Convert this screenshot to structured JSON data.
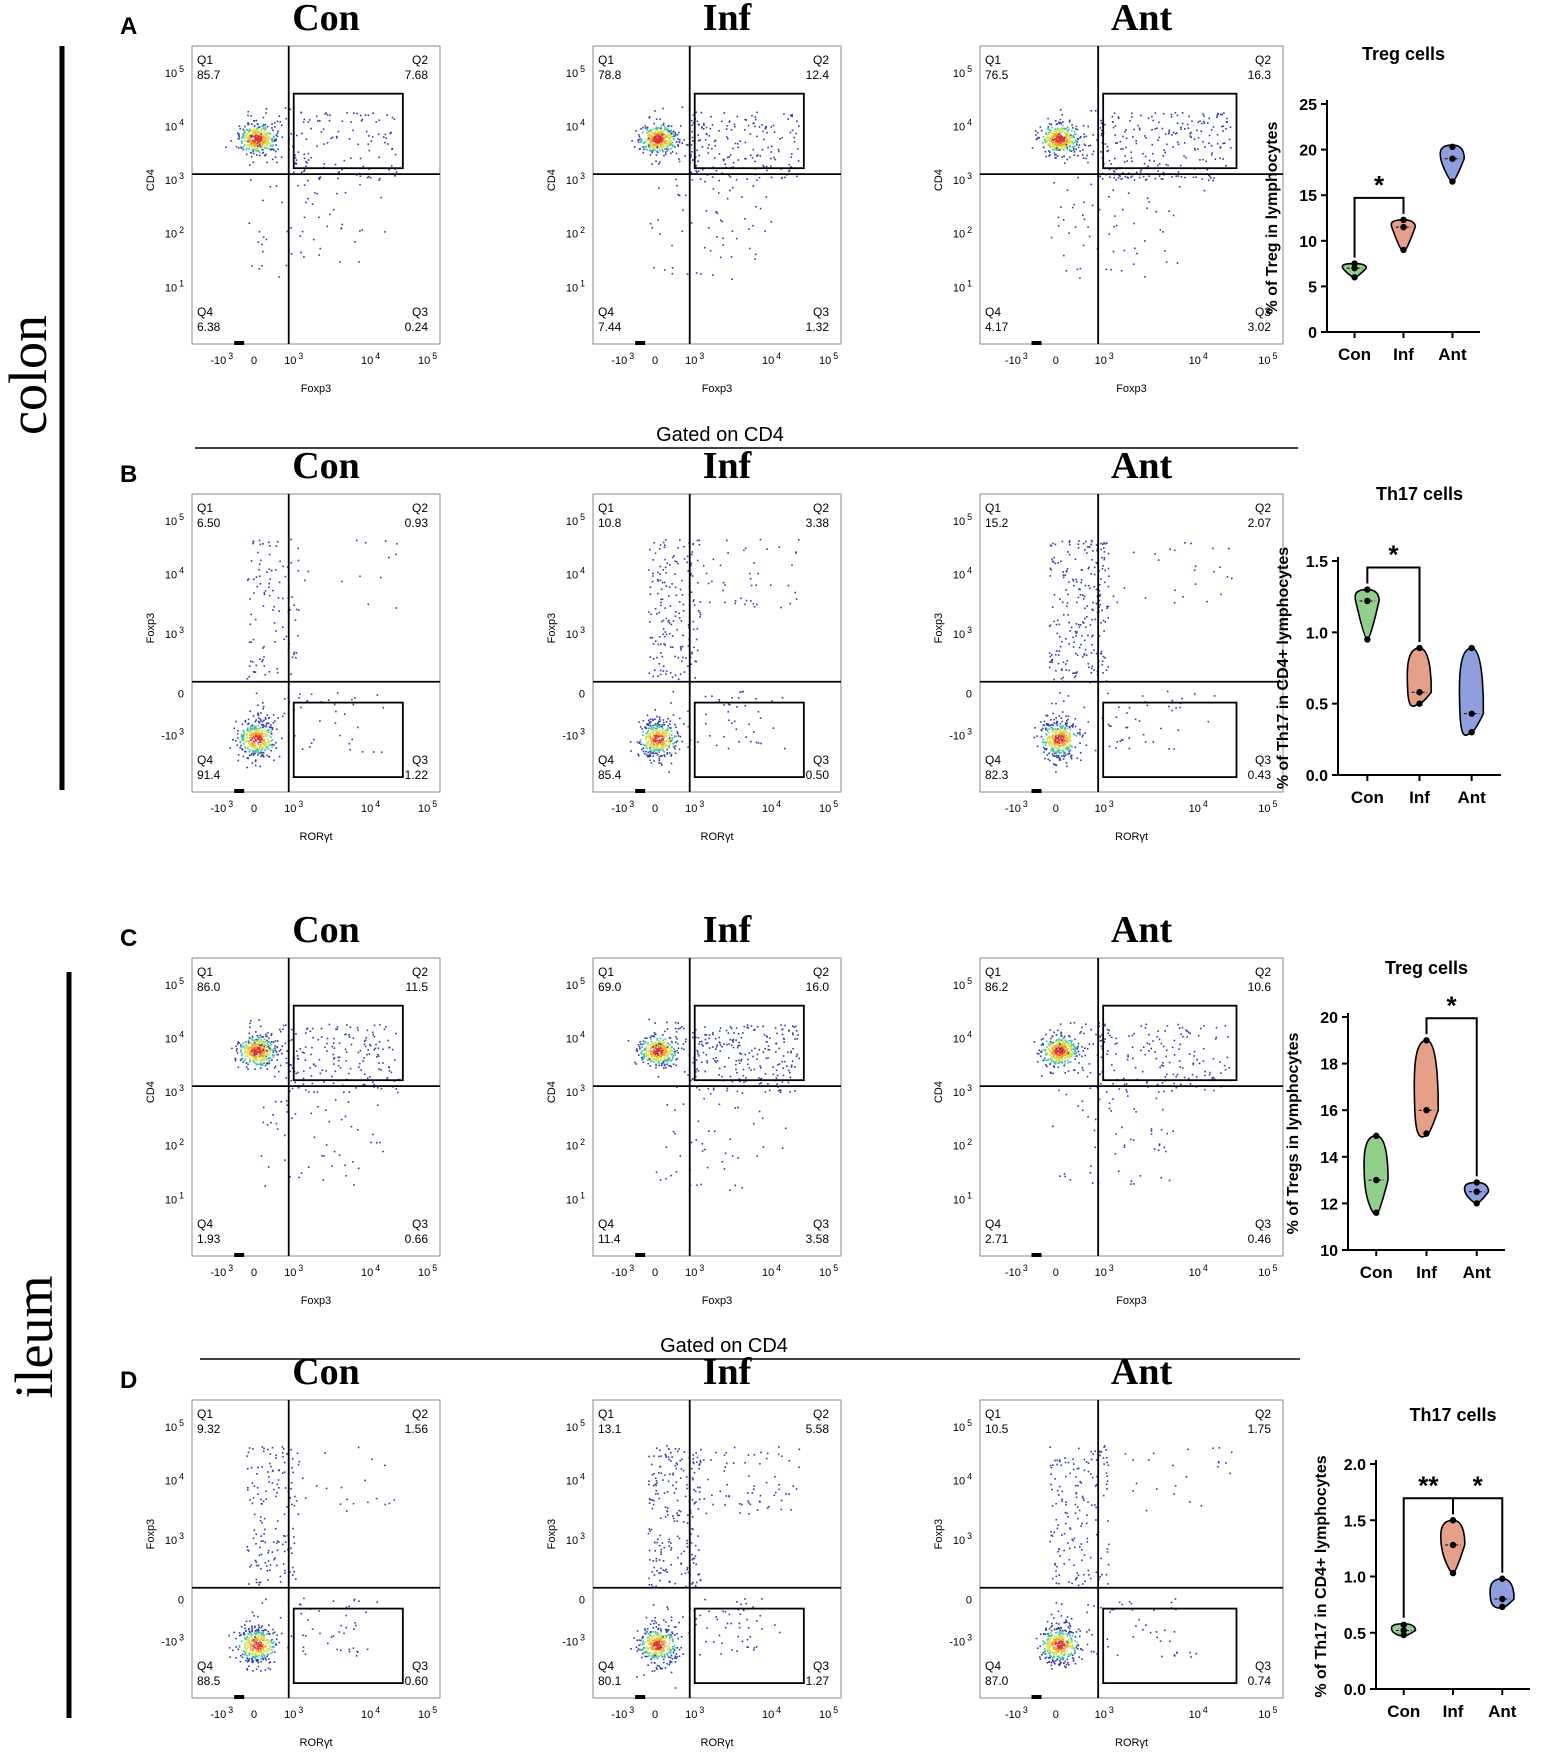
{
  "side_labels": {
    "colon": "colon",
    "ileum": "ileum"
  },
  "gated_label": "Gated on CD4",
  "group_names": [
    "Con",
    "Inf",
    "Ant"
  ],
  "colors": {
    "con": "#92cf8c",
    "inf": "#e6a08a",
    "ant": "#8f9fde",
    "scatter": "#2f3aa8"
  },
  "panels": [
    {
      "letter": "A",
      "xaxis": "Foxp3",
      "yaxis": "CD4",
      "yticks": "high",
      "plots": [
        {
          "title": "Con",
          "q": {
            "Q1": "85.7",
            "Q2": "7.68",
            "Q3": "0.24",
            "Q4": "6.38"
          }
        },
        {
          "title": "Inf",
          "q": {
            "Q1": "78.8",
            "Q2": "12.4",
            "Q3": "1.32",
            "Q4": "7.44"
          }
        },
        {
          "title": "Ant",
          "q": {
            "Q1": "76.5",
            "Q2": "16.3",
            "Q3": "3.02",
            "Q4": "4.17"
          }
        }
      ]
    },
    {
      "letter": "B",
      "xaxis": "RORγt",
      "yaxis": "Foxp3",
      "yticks": "low",
      "plots": [
        {
          "title": "Con",
          "q": {
            "Q1": "6.50",
            "Q2": "0.93",
            "Q3": "1.22",
            "Q4": "91.4"
          }
        },
        {
          "title": "Inf",
          "q": {
            "Q1": "10.8",
            "Q2": "3.38",
            "Q3": "0.50",
            "Q4": "85.4"
          }
        },
        {
          "title": "Ant",
          "q": {
            "Q1": "15.2",
            "Q2": "2.07",
            "Q3": "0.43",
            "Q4": "82.3"
          }
        }
      ]
    },
    {
      "letter": "C",
      "xaxis": "Foxp3",
      "yaxis": "CD4",
      "yticks": "high",
      "plots": [
        {
          "title": "Con",
          "q": {
            "Q1": "86.0",
            "Q2": "11.5",
            "Q3": "0.66",
            "Q4": "1.93"
          }
        },
        {
          "title": "Inf",
          "q": {
            "Q1": "69.0",
            "Q2": "16.0",
            "Q3": "3.58",
            "Q4": "11.4"
          }
        },
        {
          "title": "Ant",
          "q": {
            "Q1": "86.2",
            "Q2": "10.6",
            "Q3": "0.46",
            "Q4": "2.71"
          }
        }
      ]
    },
    {
      "letter": "D",
      "xaxis": "RORγt",
      "yaxis": "Foxp3",
      "yticks": "low",
      "plots": [
        {
          "title": "Con",
          "q": {
            "Q1": "9.32",
            "Q2": "1.56",
            "Q3": "0.60",
            "Q4": "88.5"
          }
        },
        {
          "title": "Inf",
          "q": {
            "Q1": "13.1",
            "Q2": "5.58",
            "Q3": "1.27",
            "Q4": "80.1"
          }
        },
        {
          "title": "Ant",
          "q": {
            "Q1": "10.5",
            "Q2": "1.75",
            "Q3": "0.74",
            "Q4": "87.0"
          }
        }
      ]
    }
  ],
  "ticks_x": {
    "neg": "-10",
    "zero": "0",
    "e3": "10",
    "e4": "10",
    "e5": "10",
    "exp3": "3",
    "exp4": "4",
    "exp5": "5"
  },
  "ticks_y_high": [
    {
      "base": "10",
      "exp": "5"
    },
    {
      "base": "10",
      "exp": "4"
    },
    {
      "base": "10",
      "exp": "3"
    },
    {
      "base": "10",
      "exp": "2"
    },
    {
      "base": "10",
      "exp": "1"
    }
  ],
  "ticks_y_low": [
    {
      "base": "10",
      "exp": "5"
    },
    {
      "base": "10",
      "exp": "4"
    },
    {
      "base": "10",
      "exp": "3"
    },
    {
      "base": "0",
      "exp": ""
    },
    {
      "base": "-10",
      "exp": "3"
    }
  ],
  "chart_data": [
    {
      "type": "violin",
      "title": "Treg cells",
      "ylabel": "% of Treg in lymphocytes",
      "categories": [
        "Con",
        "Inf",
        "Ant"
      ],
      "ylim": [
        0,
        25
      ],
      "yticks": [
        0,
        5,
        10,
        15,
        20,
        25
      ],
      "series": [
        {
          "name": "Con",
          "values": [
            6.0,
            7.0,
            7.5
          ],
          "min": 6.0,
          "max": 7.5,
          "median": 7.0
        },
        {
          "name": "Inf",
          "values": [
            9.0,
            11.5,
            12.3
          ],
          "min": 8.8,
          "max": 12.3,
          "median": 11.5
        },
        {
          "name": "Ant",
          "values": [
            16.5,
            19.0,
            20.3
          ],
          "min": 16.5,
          "max": 20.5,
          "median": 19.0
        }
      ],
      "significance": [
        {
          "from": "Con",
          "to": "Inf",
          "label": "*"
        }
      ]
    },
    {
      "type": "violin",
      "title": "Th17 cells",
      "ylabel": "% of Th17 in CD4+ lymphocytes",
      "categories": [
        "Con",
        "Inf",
        "Ant"
      ],
      "ylim": [
        0,
        1.5
      ],
      "yticks": [
        0.0,
        0.5,
        1.0,
        1.5
      ],
      "series": [
        {
          "name": "Con",
          "values": [
            0.95,
            1.22,
            1.3
          ],
          "min": 0.95,
          "max": 1.3,
          "median": 1.22
        },
        {
          "name": "Inf",
          "values": [
            0.5,
            0.58,
            0.89
          ],
          "min": 0.5,
          "max": 0.89,
          "median": 0.58
        },
        {
          "name": "Ant",
          "values": [
            0.3,
            0.43,
            0.89
          ],
          "min": 0.3,
          "max": 0.89,
          "median": 0.43
        }
      ],
      "significance": [
        {
          "from": "Con",
          "to": "Inf",
          "label": "*"
        }
      ]
    },
    {
      "type": "violin",
      "title": "Treg cells",
      "ylabel": "% of Tregs in lymphocytes",
      "categories": [
        "Con",
        "Inf",
        "Ant"
      ],
      "ylim": [
        10,
        20
      ],
      "yticks": [
        10,
        12,
        14,
        16,
        18,
        20
      ],
      "series": [
        {
          "name": "Con",
          "values": [
            11.6,
            13.0,
            14.9
          ],
          "min": 11.5,
          "max": 14.9,
          "median": 13.0
        },
        {
          "name": "Inf",
          "values": [
            15.0,
            16.0,
            19.0
          ],
          "min": 14.9,
          "max": 19.0,
          "median": 16.0
        },
        {
          "name": "Ant",
          "values": [
            12.0,
            12.5,
            12.9
          ],
          "min": 12.0,
          "max": 12.9,
          "median": 12.5
        }
      ],
      "significance": [
        {
          "from": "Inf",
          "to": "Ant",
          "label": "*"
        }
      ]
    },
    {
      "type": "violin",
      "title": "Th17 cells",
      "ylabel": "% of Th17 in CD4+ lymphocytes",
      "categories": [
        "Con",
        "Inf",
        "Ant"
      ],
      "ylim": [
        0,
        2.0
      ],
      "yticks": [
        0.0,
        0.5,
        1.0,
        1.5,
        2.0
      ],
      "series": [
        {
          "name": "Con",
          "values": [
            0.48,
            0.52,
            0.57
          ],
          "min": 0.47,
          "max": 0.58,
          "median": 0.52
        },
        {
          "name": "Inf",
          "values": [
            1.03,
            1.28,
            1.5
          ],
          "min": 1.03,
          "max": 1.5,
          "median": 1.28
        },
        {
          "name": "Ant",
          "values": [
            0.73,
            0.8,
            0.98
          ],
          "min": 0.72,
          "max": 0.98,
          "median": 0.8
        }
      ],
      "significance": [
        {
          "from": "Con",
          "to": "Inf",
          "label": "**"
        },
        {
          "from": "Inf",
          "to": "Ant",
          "label": "*"
        }
      ]
    }
  ]
}
